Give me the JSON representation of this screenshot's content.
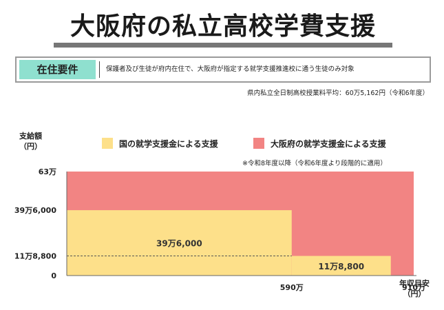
{
  "header": {
    "title": "大阪府の私立高校学費支援",
    "requirement_label": "在住要件",
    "requirement_text": "保護者及び生徒が府内在住で、大阪府が指定する就学支援推進校に通う生徒のみ対象",
    "average_tuition_note": "県内私立全日制高校授業料平均：60万5,162円（令和6年度）"
  },
  "chart_data": {
    "type": "area",
    "ylabel": [
      "支給額",
      "（円）"
    ],
    "xlabel": [
      "年収目安",
      "（円）"
    ],
    "footnote": "※令和8年度以降（令和6年度より段階的に適用）",
    "ylim": [
      0,
      630000
    ],
    "xlim": [
      0,
      910
    ],
    "yticks": [
      {
        "value": 0,
        "label": "0"
      },
      {
        "value": 118800,
        "label": "11万8,800"
      },
      {
        "value": 396000,
        "label": "39万6,000"
      },
      {
        "value": 630000,
        "label": "63万"
      }
    ],
    "xticks": [
      {
        "value": 590,
        "label": "590万"
      },
      {
        "value": 910,
        "label": "910万"
      }
    ],
    "series": [
      {
        "name": "大阪府の就学支援金による支援",
        "color": "#f28483",
        "segments": [
          {
            "x0": 0,
            "x1": 910,
            "value": 630000
          }
        ]
      },
      {
        "name": "国の就学支援金による支援",
        "color": "#fde08a",
        "segments": [
          {
            "x0": 0,
            "x1": 590,
            "value": 396000,
            "label": "39万6,000"
          },
          {
            "x0": 590,
            "x1": 850,
            "value": 118800,
            "label": "11万8,800"
          }
        ]
      }
    ],
    "reference_line": {
      "value": 118800,
      "x0": 0,
      "x1": 590
    }
  }
}
